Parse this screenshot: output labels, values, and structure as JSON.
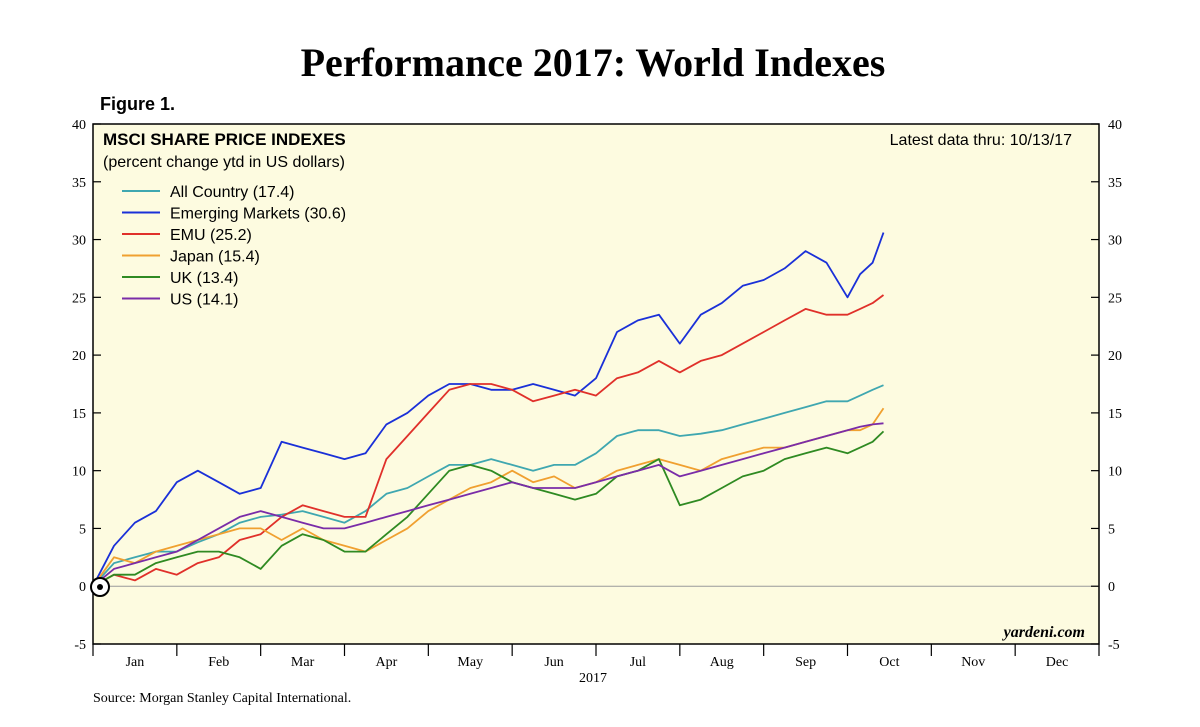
{
  "chart_data": {
    "type": "line",
    "title": "Performance 2017: World Indexes",
    "figure_label": "Figure 1.",
    "panel_title": "MSCI SHARE PRICE INDEXES",
    "panel_subtitle": "(percent change ytd in US dollars)",
    "latest_data": "Latest data thru: 10/13/17",
    "watermark": "yardeni.com",
    "source": "Source: Morgan Stanley Capital International.",
    "xlabel": "2017",
    "ylabel": "",
    "ylim": [
      -5,
      40
    ],
    "yticks": [
      -5,
      0,
      5,
      10,
      15,
      20,
      25,
      30,
      35,
      40
    ],
    "ytick_labels": [
      "-5",
      "0",
      "5",
      "10",
      "15",
      "20",
      "25",
      "30",
      "35",
      "40"
    ],
    "xlim": [
      0,
      12
    ],
    "months": [
      "Jan",
      "Feb",
      "Mar",
      "Apr",
      "May",
      "Jun",
      "Jul",
      "Aug",
      "Sep",
      "Oct",
      "Nov",
      "Dec"
    ],
    "x_unit": "months since Jan 1",
    "series": [
      {
        "name": "All Country",
        "legend": "All Country (17.4)",
        "color": "#3fa7b0",
        "x": [
          0,
          0.25,
          0.5,
          0.75,
          1.0,
          1.25,
          1.5,
          1.75,
          2.0,
          2.25,
          2.5,
          2.75,
          3.0,
          3.25,
          3.5,
          3.75,
          4.0,
          4.25,
          4.5,
          4.75,
          5.0,
          5.25,
          5.5,
          5.75,
          6.0,
          6.25,
          6.5,
          6.75,
          7.0,
          7.25,
          7.5,
          7.75,
          8.0,
          8.25,
          8.5,
          8.75,
          9.0,
          9.15,
          9.3,
          9.43
        ],
        "values": [
          0,
          2.0,
          2.5,
          3.0,
          3.0,
          3.8,
          4.5,
          5.5,
          6.0,
          6.2,
          6.5,
          6.0,
          5.5,
          6.5,
          8.0,
          8.5,
          9.5,
          10.5,
          10.5,
          11.0,
          10.5,
          10.0,
          10.5,
          10.5,
          11.5,
          13.0,
          13.5,
          13.5,
          13.0,
          13.2,
          13.5,
          14.0,
          14.5,
          15.0,
          15.5,
          16.0,
          16.0,
          16.5,
          17.0,
          17.4
        ]
      },
      {
        "name": "Emerging Markets",
        "legend": "Emerging Markets (30.6)",
        "color": "#1a30d8",
        "x": [
          0,
          0.25,
          0.5,
          0.75,
          1.0,
          1.25,
          1.5,
          1.75,
          2.0,
          2.25,
          2.5,
          2.75,
          3.0,
          3.25,
          3.5,
          3.75,
          4.0,
          4.25,
          4.5,
          4.75,
          5.0,
          5.25,
          5.5,
          5.75,
          6.0,
          6.25,
          6.5,
          6.75,
          7.0,
          7.25,
          7.5,
          7.75,
          8.0,
          8.25,
          8.5,
          8.75,
          9.0,
          9.15,
          9.3,
          9.43
        ],
        "values": [
          0,
          3.5,
          5.5,
          6.5,
          9.0,
          10.0,
          9.0,
          8.0,
          8.5,
          12.5,
          12.0,
          11.5,
          11.0,
          11.5,
          14.0,
          15.0,
          16.5,
          17.5,
          17.5,
          17.0,
          17.0,
          17.5,
          17.0,
          16.5,
          18.0,
          22.0,
          23.0,
          23.5,
          21.0,
          23.5,
          24.5,
          26.0,
          26.5,
          27.5,
          29.0,
          28.0,
          25.0,
          27.0,
          28.0,
          30.6
        ]
      },
      {
        "name": "EMU",
        "legend": "EMU (25.2)",
        "color": "#e0302a",
        "x": [
          0,
          0.25,
          0.5,
          0.75,
          1.0,
          1.25,
          1.5,
          1.75,
          2.0,
          2.25,
          2.5,
          2.75,
          3.0,
          3.25,
          3.5,
          3.75,
          4.0,
          4.25,
          4.5,
          4.75,
          5.0,
          5.25,
          5.5,
          5.75,
          6.0,
          6.25,
          6.5,
          6.75,
          7.0,
          7.25,
          7.5,
          7.75,
          8.0,
          8.25,
          8.5,
          8.75,
          9.0,
          9.15,
          9.3,
          9.43
        ],
        "values": [
          0,
          1.0,
          0.5,
          1.5,
          1.0,
          2.0,
          2.5,
          4.0,
          4.5,
          6.0,
          7.0,
          6.5,
          6.0,
          6.0,
          11.0,
          13.0,
          15.0,
          17.0,
          17.5,
          17.5,
          17.0,
          16.0,
          16.5,
          17.0,
          16.5,
          18.0,
          18.5,
          19.5,
          18.5,
          19.5,
          20.0,
          21.0,
          22.0,
          23.0,
          24.0,
          23.5,
          23.5,
          24.0,
          24.5,
          25.2
        ]
      },
      {
        "name": "Japan",
        "legend": "Japan (15.4)",
        "color": "#f0a030",
        "x": [
          0,
          0.25,
          0.5,
          0.75,
          1.0,
          1.25,
          1.5,
          1.75,
          2.0,
          2.25,
          2.5,
          2.75,
          3.0,
          3.25,
          3.5,
          3.75,
          4.0,
          4.25,
          4.5,
          4.75,
          5.0,
          5.25,
          5.5,
          5.75,
          6.0,
          6.25,
          6.5,
          6.75,
          7.0,
          7.25,
          7.5,
          7.75,
          8.0,
          8.25,
          8.5,
          8.75,
          9.0,
          9.15,
          9.3,
          9.43
        ],
        "values": [
          0,
          2.5,
          2.0,
          3.0,
          3.5,
          4.0,
          4.5,
          5.0,
          5.0,
          4.0,
          5.0,
          4.0,
          3.5,
          3.0,
          4.0,
          5.0,
          6.5,
          7.5,
          8.5,
          9.0,
          10.0,
          9.0,
          9.5,
          8.5,
          9.0,
          10.0,
          10.5,
          11.0,
          10.5,
          10.0,
          11.0,
          11.5,
          12.0,
          12.0,
          12.5,
          13.0,
          13.5,
          13.5,
          14.0,
          15.4
        ]
      },
      {
        "name": "UK",
        "legend": "UK (13.4)",
        "color": "#2f8a22",
        "x": [
          0,
          0.25,
          0.5,
          0.75,
          1.0,
          1.25,
          1.5,
          1.75,
          2.0,
          2.25,
          2.5,
          2.75,
          3.0,
          3.25,
          3.5,
          3.75,
          4.0,
          4.25,
          4.5,
          4.75,
          5.0,
          5.25,
          5.5,
          5.75,
          6.0,
          6.25,
          6.5,
          6.75,
          7.0,
          7.25,
          7.5,
          7.75,
          8.0,
          8.25,
          8.5,
          8.75,
          9.0,
          9.15,
          9.3,
          9.43
        ],
        "values": [
          0,
          1.0,
          1.0,
          2.0,
          2.5,
          3.0,
          3.0,
          2.5,
          1.5,
          3.5,
          4.5,
          4.0,
          3.0,
          3.0,
          4.5,
          6.0,
          8.0,
          10.0,
          10.5,
          10.0,
          9.0,
          8.5,
          8.0,
          7.5,
          8.0,
          9.5,
          10.0,
          11.0,
          7.0,
          7.5,
          8.5,
          9.5,
          10.0,
          11.0,
          11.5,
          12.0,
          11.5,
          12.0,
          12.5,
          13.4
        ]
      },
      {
        "name": "US",
        "legend": "US (14.1)",
        "color": "#7a2ca8",
        "x": [
          0,
          0.25,
          0.5,
          0.75,
          1.0,
          1.25,
          1.5,
          1.75,
          2.0,
          2.25,
          2.5,
          2.75,
          3.0,
          3.25,
          3.5,
          3.75,
          4.0,
          4.25,
          4.5,
          4.75,
          5.0,
          5.25,
          5.5,
          5.75,
          6.0,
          6.25,
          6.5,
          6.75,
          7.0,
          7.25,
          7.5,
          7.75,
          8.0,
          8.25,
          8.5,
          8.75,
          9.0,
          9.15,
          9.3,
          9.43
        ],
        "values": [
          0,
          1.5,
          2.0,
          2.5,
          3.0,
          4.0,
          5.0,
          6.0,
          6.5,
          6.0,
          5.5,
          5.0,
          5.0,
          5.5,
          6.0,
          6.5,
          7.0,
          7.5,
          8.0,
          8.5,
          9.0,
          8.5,
          8.5,
          8.5,
          9.0,
          9.5,
          10.0,
          10.5,
          9.5,
          10.0,
          10.5,
          11.0,
          11.5,
          12.0,
          12.5,
          13.0,
          13.5,
          13.8,
          14.0,
          14.1
        ]
      }
    ]
  }
}
